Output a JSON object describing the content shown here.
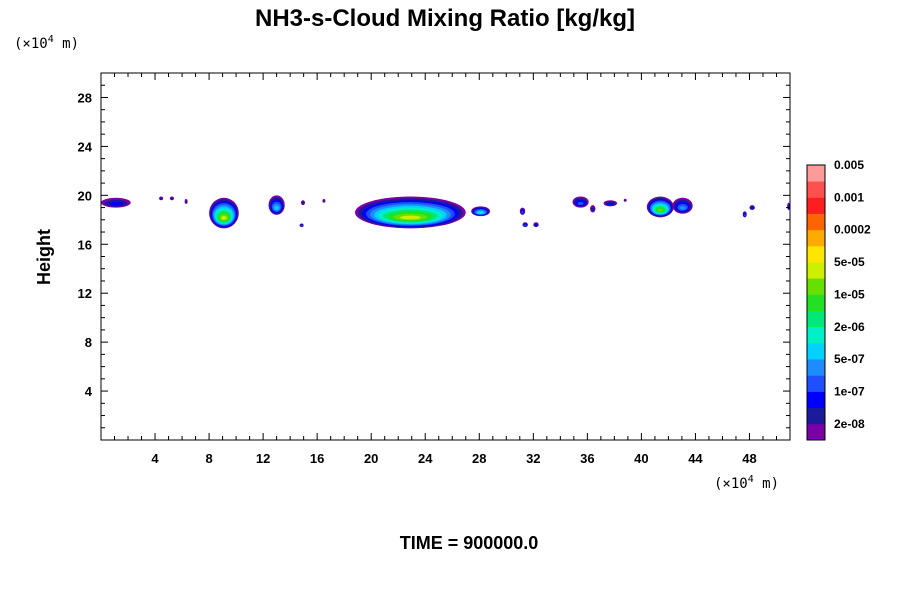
{
  "chart_data": {
    "type": "heatmap",
    "title": "NH3-s-Cloud Mixing Ratio [kg/kg]",
    "ylabel": "Height",
    "x_unit": {
      "prefix": "(×10",
      "exp": "4",
      "suffix": " m)"
    },
    "y_unit": {
      "prefix": "(×10",
      "exp": "4",
      "suffix": " m)"
    },
    "xlim": [
      0,
      51
    ],
    "ylim": [
      0,
      30
    ],
    "x_ticks": [
      4,
      8,
      12,
      16,
      20,
      24,
      28,
      32,
      36,
      40,
      44,
      48
    ],
    "y_ticks": [
      4,
      8,
      12,
      16,
      20,
      24,
      28
    ],
    "footer": "TIME = 900000.0",
    "colorbar": {
      "colors": [
        "#7a00a8",
        "#1a1a9a",
        "#0000ff",
        "#1e50ff",
        "#1e8cff",
        "#00d2ff",
        "#00f0c8",
        "#00e878",
        "#22e022",
        "#66e000",
        "#ccf000",
        "#ffe600",
        "#ffaa00",
        "#ff6400",
        "#ff1e1e",
        "#ff5050",
        "#ff9a9a"
      ],
      "labels": [
        "2e-08",
        "1e-07",
        "5e-07",
        "2e-06",
        "1e-05",
        "5e-05",
        "0.0002",
        "0.001",
        "0.005"
      ],
      "label_levels": [
        1,
        3,
        5,
        7,
        9,
        11,
        13,
        15,
        17
      ]
    },
    "blobs": [
      {
        "x": [
          0.0,
          2.2
        ],
        "y": [
          19.0,
          19.8
        ],
        "max_level": 3
      },
      {
        "x": [
          4.3,
          4.6
        ],
        "y": [
          19.6,
          19.9
        ],
        "max_level": 2
      },
      {
        "x": [
          5.1,
          5.4
        ],
        "y": [
          19.6,
          19.9
        ],
        "max_level": 2
      },
      {
        "x": [
          6.2,
          6.4
        ],
        "y": [
          19.3,
          19.7
        ],
        "max_level": 2
      },
      {
        "x": [
          8.0,
          10.2
        ],
        "y": [
          17.3,
          19.8
        ],
        "max_level": 11
      },
      {
        "x": [
          12.4,
          13.6
        ],
        "y": [
          18.4,
          20.0
        ],
        "max_level": 6
      },
      {
        "x": [
          14.8,
          15.1
        ],
        "y": [
          19.2,
          19.6
        ],
        "max_level": 2
      },
      {
        "x": [
          14.7,
          15.0
        ],
        "y": [
          17.4,
          17.7
        ],
        "max_level": 4
      },
      {
        "x": [
          16.4,
          16.6
        ],
        "y": [
          19.4,
          19.7
        ],
        "max_level": 2
      },
      {
        "x": [
          18.8,
          27.0
        ],
        "y": [
          17.3,
          19.9
        ],
        "max_level": 11
      },
      {
        "x": [
          27.4,
          28.8
        ],
        "y": [
          18.3,
          19.1
        ],
        "max_level": 7
      },
      {
        "x": [
          31.0,
          31.4
        ],
        "y": [
          18.4,
          19.0
        ],
        "max_level": 4
      },
      {
        "x": [
          31.2,
          31.6
        ],
        "y": [
          17.4,
          17.8
        ],
        "max_level": 4
      },
      {
        "x": [
          32.0,
          32.4
        ],
        "y": [
          17.4,
          17.8
        ],
        "max_level": 3
      },
      {
        "x": [
          34.9,
          36.1
        ],
        "y": [
          19.0,
          19.9
        ],
        "max_level": 4
      },
      {
        "x": [
          36.2,
          36.6
        ],
        "y": [
          18.6,
          19.2
        ],
        "max_level": 2
      },
      {
        "x": [
          37.2,
          38.2
        ],
        "y": [
          19.1,
          19.6
        ],
        "max_level": 3
      },
      {
        "x": [
          38.7,
          38.9
        ],
        "y": [
          19.5,
          19.7
        ],
        "max_level": 2
      },
      {
        "x": [
          40.4,
          42.4
        ],
        "y": [
          18.2,
          19.9
        ],
        "max_level": 10
      },
      {
        "x": [
          42.3,
          43.8
        ],
        "y": [
          18.5,
          19.8
        ],
        "max_level": 5
      },
      {
        "x": [
          47.5,
          47.8
        ],
        "y": [
          18.2,
          18.7
        ],
        "max_level": 4
      },
      {
        "x": [
          48.0,
          48.4
        ],
        "y": [
          18.8,
          19.2
        ],
        "max_level": 3
      },
      {
        "x": [
          50.8,
          51.0
        ],
        "y": [
          18.8,
          19.4
        ],
        "max_level": 3
      }
    ]
  }
}
